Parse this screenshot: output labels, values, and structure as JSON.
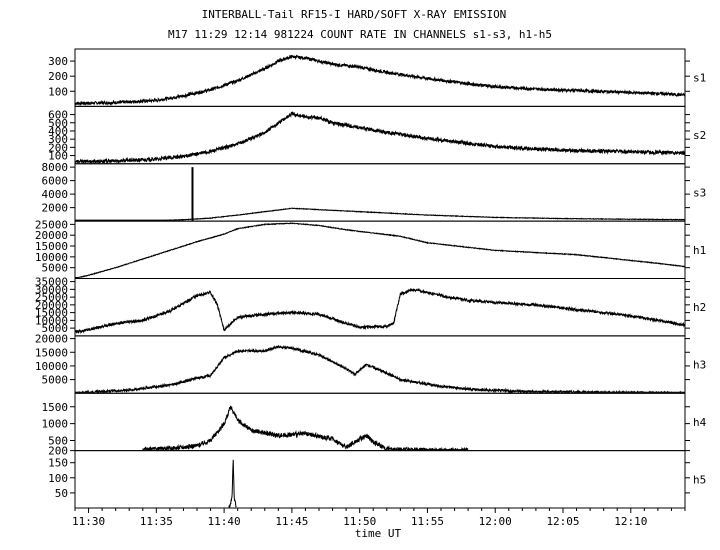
{
  "chart_data": {
    "type": "line",
    "title": "INTERBALL-Tail RF15-I HARD/SOFT X-RAY EMISSION",
    "subtitle": "M17  11:29 12:14 981224  COUNT RATE IN CHANNELS s1-s3, h1-h5",
    "xlabel": "time UT",
    "xlim": [
      "11:29",
      "12:14"
    ],
    "x_ticks": [
      "11:30",
      "11:35",
      "11:40",
      "11:45",
      "11:50",
      "11:55",
      "12:00",
      "12:05",
      "12:10"
    ],
    "grid": false,
    "panels": [
      {
        "channel": "s1",
        "ylim": [
          0,
          380
        ],
        "yticks": [
          100,
          200,
          300
        ],
        "x": [
          "11:29",
          "11:32",
          "11:35",
          "11:37",
          "11:39",
          "11:41",
          "11:43",
          "11:44",
          "11:45",
          "11:46",
          "11:47",
          "11:48",
          "11:50",
          "11:52",
          "11:55",
          "11:58",
          "12:00",
          "12:03",
          "12:06",
          "12:09",
          "12:12",
          "12:14"
        ],
        "y": [
          20,
          25,
          40,
          70,
          110,
          170,
          250,
          300,
          330,
          320,
          300,
          280,
          260,
          225,
          185,
          150,
          130,
          115,
          105,
          95,
          85,
          75
        ],
        "noise": 10
      },
      {
        "channel": "s2",
        "ylim": [
          0,
          700
        ],
        "yticks": [
          100,
          200,
          300,
          400,
          500,
          600
        ],
        "x": [
          "11:29",
          "11:32",
          "11:35",
          "11:37",
          "11:39",
          "11:41",
          "11:43",
          "11:44",
          "11:45",
          "11:46",
          "11:47",
          "11:48",
          "11:50",
          "11:52",
          "11:55",
          "11:58",
          "12:00",
          "12:03",
          "12:06",
          "12:09",
          "12:12",
          "12:14"
        ],
        "y": [
          25,
          35,
          55,
          90,
          150,
          240,
          380,
          500,
          610,
          570,
          560,
          500,
          440,
          380,
          310,
          250,
          210,
          180,
          160,
          150,
          140,
          130
        ],
        "noise": 22
      },
      {
        "channel": "s3",
        "ylim": [
          0,
          8500
        ],
        "yticks": [
          2000,
          4000,
          6000,
          8000
        ],
        "x": [
          "11:29",
          "11:35",
          "11:37",
          "11:39",
          "11:41",
          "11:43",
          "11:45",
          "11:47",
          "11:50",
          "11:55",
          "12:00",
          "12:05",
          "12:10",
          "12:14"
        ],
        "y": [
          40,
          100,
          200,
          450,
          900,
          1400,
          1900,
          1700,
          1400,
          900,
          550,
          380,
          280,
          220
        ],
        "spike": {
          "x": "11:37:40",
          "y": 8000
        },
        "noise": 40
      },
      {
        "channel": "h1",
        "ylim": [
          0,
          26500
        ],
        "yticks": [
          5000,
          10000,
          15000,
          20000,
          25000
        ],
        "x": [
          "11:29",
          "11:30",
          "11:32",
          "11:34",
          "11:36",
          "11:38",
          "11:40",
          "11:41",
          "11:43",
          "11:45",
          "11:47",
          "11:49",
          "11:51",
          "11:53",
          "11:55",
          "12:00",
          "12:03",
          "12:06",
          "12:09",
          "12:12",
          "12:14"
        ],
        "y": [
          0,
          1500,
          5000,
          9000,
          13000,
          17000,
          20500,
          23000,
          25000,
          25500,
          24500,
          22500,
          21000,
          19500,
          16500,
          13000,
          12000,
          11000,
          9000,
          7000,
          5500
        ],
        "noise": 150
      },
      {
        "channel": "h2",
        "ylim": [
          0,
          37000
        ],
        "yticks": [
          5000,
          10000,
          15000,
          20000,
          25000,
          30000,
          35000
        ],
        "x": [
          "11:29",
          "11:30",
          "11:32",
          "11:34",
          "11:36",
          "11:38",
          "11:39",
          "11:39:30",
          "11:40",
          "11:41",
          "11:43",
          "11:45",
          "11:47",
          "11:49",
          "11:50",
          "11:52",
          "11:52:30",
          "11:53",
          "11:54",
          "11:56",
          "11:58",
          "12:00",
          "12:03",
          "12:06",
          "12:09",
          "12:12",
          "12:14"
        ],
        "y": [
          2500,
          4000,
          8000,
          10000,
          16000,
          26000,
          28000,
          20000,
          4000,
          12000,
          14000,
          15000,
          14000,
          8000,
          5500,
          6000,
          8000,
          27000,
          30000,
          26000,
          23000,
          21500,
          20000,
          17000,
          14000,
          10000,
          7000
        ],
        "noise": 900
      },
      {
        "channel": "h3",
        "ylim": [
          0,
          21000
        ],
        "yticks": [
          5000,
          10000,
          15000,
          20000
        ],
        "x": [
          "11:29",
          "11:30",
          "11:33",
          "11:36",
          "11:38",
          "11:39",
          "11:40",
          "11:41",
          "11:43",
          "11:44",
          "11:45",
          "11:47",
          "11:49",
          "11:49:40",
          "11:50:30",
          "11:51:30",
          "11:53",
          "11:56",
          "11:59",
          "12:02",
          "12:06",
          "12:10",
          "12:14"
        ],
        "y": [
          0,
          300,
          1200,
          3000,
          5500,
          6500,
          13000,
          15500,
          15500,
          17000,
          16500,
          14000,
          9000,
          7000,
          10500,
          8500,
          5000,
          2500,
          1200,
          700,
          400,
          200,
          100
        ],
        "noise": 450
      },
      {
        "channel": "h4",
        "ylim": [
          200,
          1900
        ],
        "yticks": [
          200,
          500,
          1000,
          1500
        ],
        "x": [
          "11:34",
          "11:36",
          "11:38",
          "11:39",
          "11:40",
          "11:40:30",
          "11:41",
          "11:42",
          "11:44",
          "11:46",
          "11:48",
          "11:49",
          "11:50",
          "11:50:30",
          "11:51",
          "11:52",
          "11:55",
          "11:58"
        ],
        "y": [
          220,
          260,
          350,
          500,
          1000,
          1500,
          1100,
          800,
          650,
          700,
          550,
          300,
          550,
          650,
          450,
          250,
          210,
          200
        ],
        "noise": 70
      },
      {
        "channel": "h5",
        "ylim": [
          0,
          190
        ],
        "yticks": [
          50,
          100,
          150,
          200
        ],
        "x": [
          "11:40:20",
          "11:40:35",
          "11:40:40",
          "11:40:45",
          "11:40:55"
        ],
        "y": [
          0,
          30,
          170,
          30,
          0
        ],
        "noise": 8
      }
    ]
  }
}
